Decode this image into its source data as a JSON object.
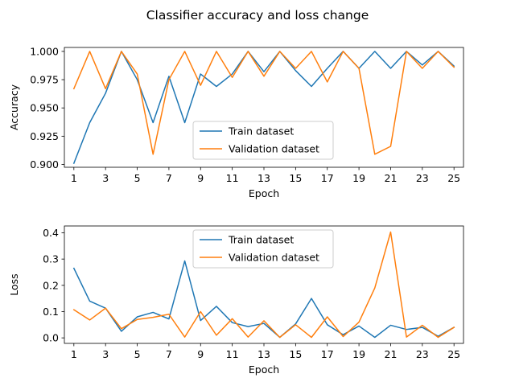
{
  "figure": {
    "title": "Classifier accuracy and loss change"
  },
  "chart_data": [
    {
      "type": "line",
      "xlabel": "Epoch",
      "ylabel": "Accuracy",
      "xlim": [
        0.4,
        25.6
      ],
      "ylim": [
        0.8975,
        1.0035
      ],
      "xticks": [
        1,
        3,
        5,
        7,
        9,
        11,
        13,
        15,
        17,
        19,
        21,
        23,
        25
      ],
      "yticks": [
        0.9,
        0.925,
        0.95,
        0.975,
        1.0
      ],
      "ytick_labels": [
        "0.900",
        "0.925",
        "0.950",
        "0.975",
        "1.000"
      ],
      "legend": "lower-center",
      "grid": false,
      "x": [
        1,
        2,
        3,
        4,
        5,
        6,
        7,
        8,
        9,
        10,
        11,
        12,
        13,
        14,
        15,
        16,
        17,
        18,
        19,
        20,
        21,
        22,
        23,
        24,
        25
      ],
      "series": [
        {
          "name": "Train dataset",
          "color": "#1f77b4",
          "values": [
            0.901,
            0.937,
            0.963,
            1.0,
            0.975,
            0.937,
            0.978,
            0.937,
            0.98,
            0.969,
            0.98,
            1.0,
            0.982,
            1.0,
            0.983,
            0.969,
            0.985,
            1.0,
            0.985,
            1.0,
            0.985,
            1.0,
            0.988,
            1.0,
            0.987
          ]
        },
        {
          "name": "Validation dataset",
          "color": "#ff7f0e",
          "values": [
            0.967,
            1.0,
            0.967,
            1.0,
            0.98,
            0.909,
            0.975,
            1.0,
            0.97,
            1.0,
            0.977,
            1.0,
            0.978,
            1.0,
            0.985,
            1.0,
            0.973,
            1.0,
            0.985,
            0.909,
            0.916,
            1.0,
            0.985,
            1.0,
            0.986
          ]
        }
      ]
    },
    {
      "type": "line",
      "xlabel": "Epoch",
      "ylabel": "Loss",
      "xlim": [
        0.4,
        25.6
      ],
      "ylim": [
        -0.021,
        0.426
      ],
      "xticks": [
        1,
        3,
        5,
        7,
        9,
        11,
        13,
        15,
        17,
        19,
        21,
        23,
        25
      ],
      "yticks": [
        0.0,
        0.1,
        0.2,
        0.3,
        0.4
      ],
      "ytick_labels": [
        "0.0",
        "0.1",
        "0.2",
        "0.3",
        "0.4"
      ],
      "legend": "upper-center",
      "grid": false,
      "x": [
        1,
        2,
        3,
        4,
        5,
        6,
        7,
        8,
        9,
        10,
        11,
        12,
        13,
        14,
        15,
        16,
        17,
        18,
        19,
        20,
        21,
        22,
        23,
        24,
        25
      ],
      "series": [
        {
          "name": "Train dataset",
          "color": "#1f77b4",
          "values": [
            0.265,
            0.14,
            0.113,
            0.025,
            0.08,
            0.097,
            0.072,
            0.293,
            0.066,
            0.12,
            0.058,
            0.043,
            0.055,
            0.002,
            0.053,
            0.15,
            0.05,
            0.012,
            0.045,
            0.002,
            0.048,
            0.032,
            0.04,
            0.006,
            0.04
          ]
        },
        {
          "name": "Validation dataset",
          "color": "#ff7f0e",
          "values": [
            0.107,
            0.068,
            0.113,
            0.035,
            0.07,
            0.078,
            0.09,
            0.003,
            0.1,
            0.01,
            0.073,
            0.003,
            0.065,
            0.002,
            0.05,
            0.002,
            0.08,
            0.005,
            0.06,
            0.19,
            0.403,
            0.003,
            0.048,
            0.002,
            0.04
          ]
        }
      ]
    }
  ]
}
